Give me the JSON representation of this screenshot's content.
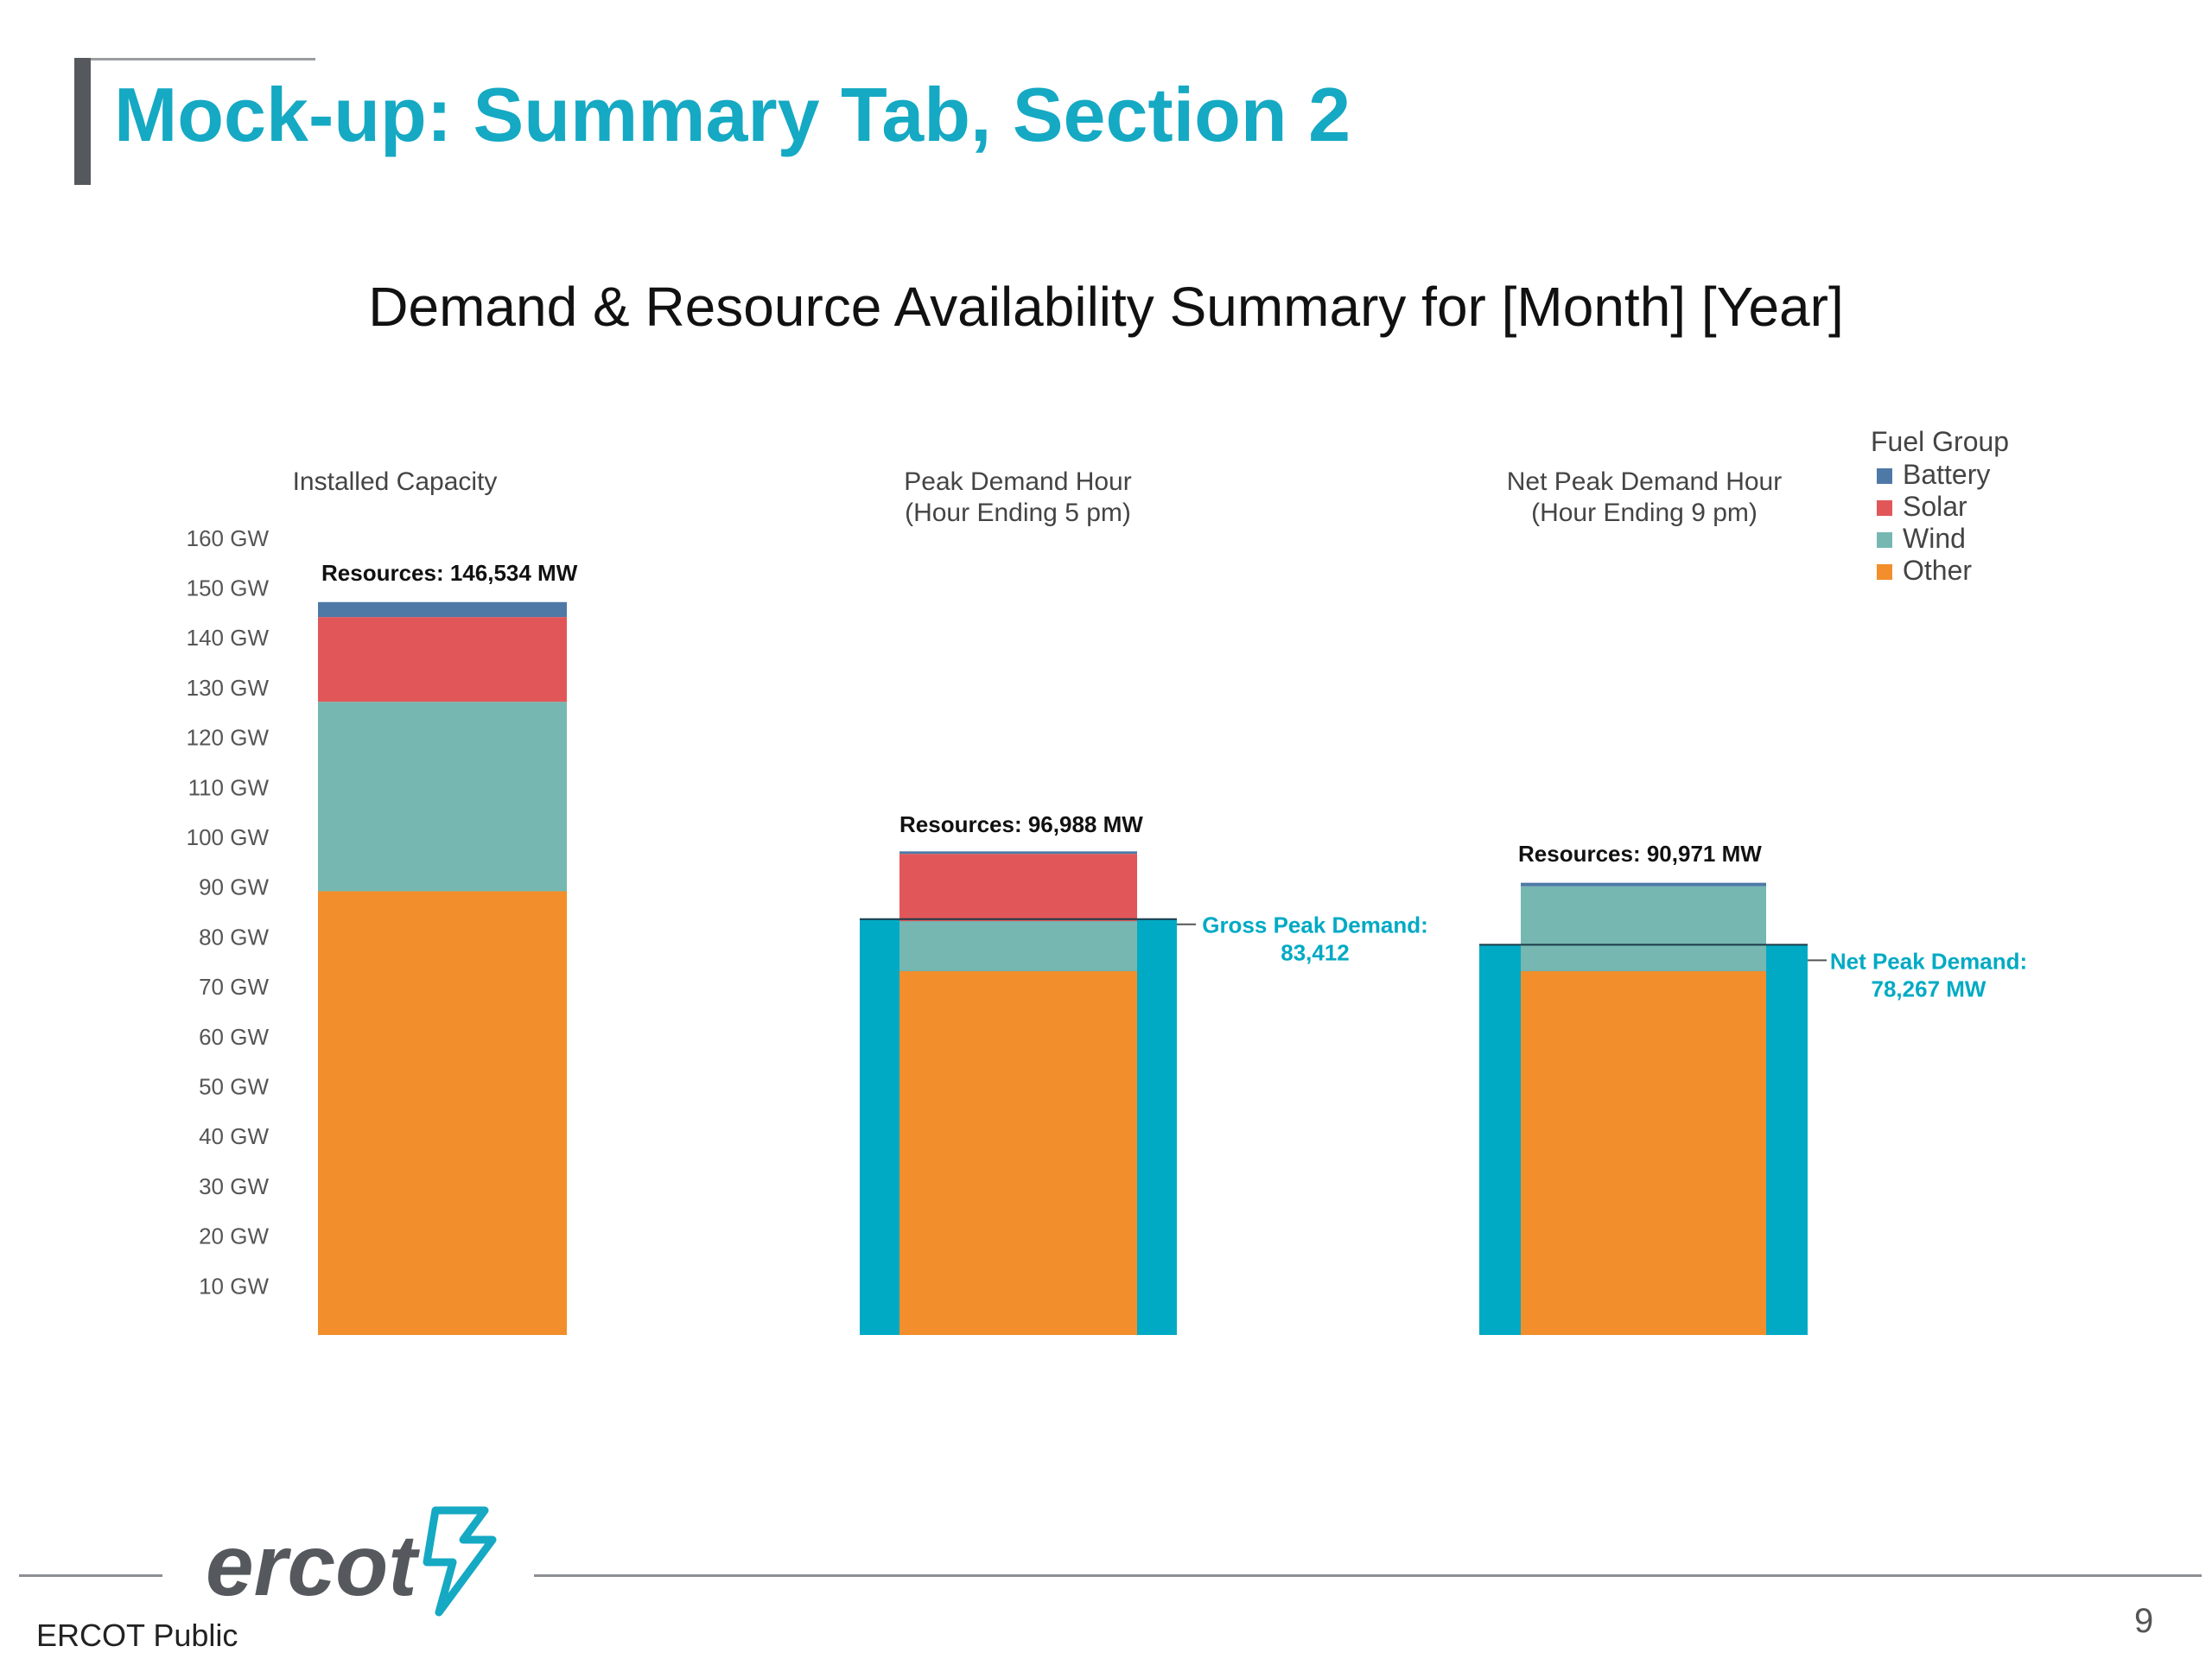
{
  "slide": {
    "title": "Mock-up: Summary Tab, Section 2",
    "footer_text": "ERCOT Public",
    "page_number": "9",
    "logo_text": "ercot",
    "accent_color": "#15a9c3"
  },
  "chart_data": {
    "type": "bar",
    "stacked": true,
    "title": "Demand & Resource Availability Summary for [Month] [Year]",
    "categories": [
      {
        "lines": [
          "Installed Capacity"
        ]
      },
      {
        "lines": [
          "Peak Demand Hour",
          "(Hour Ending 5 pm)"
        ]
      },
      {
        "lines": [
          "Net Peak Demand Hour",
          "(Hour Ending 9 pm)"
        ]
      }
    ],
    "y_ticks": [
      {
        "value": 10,
        "label": "10 GW"
      },
      {
        "value": 20,
        "label": "20 GW"
      },
      {
        "value": 30,
        "label": "30 GW"
      },
      {
        "value": 40,
        "label": "40 GW"
      },
      {
        "value": 50,
        "label": "50 GW"
      },
      {
        "value": 60,
        "label": "60 GW"
      },
      {
        "value": 70,
        "label": "70 GW"
      },
      {
        "value": 80,
        "label": "80 GW"
      },
      {
        "value": 90,
        "label": "90 GW"
      },
      {
        "value": 100,
        "label": "100 GW"
      },
      {
        "value": 110,
        "label": "110 GW"
      },
      {
        "value": 120,
        "label": "120 GW"
      },
      {
        "value": 130,
        "label": "130 GW"
      },
      {
        "value": 140,
        "label": "140 GW"
      },
      {
        "value": 150,
        "label": "150 GW"
      },
      {
        "value": 160,
        "label": "160 GW"
      }
    ],
    "ylim": [
      0,
      160
    ],
    "legend_title": "Fuel Group",
    "legend_position": "top-right",
    "series": [
      {
        "name": "Other",
        "color": "#f28e2b",
        "values": [
          89,
          73,
          73
        ]
      },
      {
        "name": "Wind",
        "color": "#76b7b2",
        "values": [
          38,
          10,
          17
        ]
      },
      {
        "name": "Solar",
        "color": "#e15759",
        "values": [
          17,
          13.5,
          0
        ]
      },
      {
        "name": "Battery",
        "color": "#4e79a7",
        "values": [
          3,
          0.5,
          0.7
        ]
      }
    ],
    "legend_order": [
      "Battery",
      "Solar",
      "Wind",
      "Other"
    ],
    "total_labels": [
      "Resources: 146,534 MW",
      "Resources: 96,988 MW",
      "Resources: 90,971 MW"
    ],
    "demand": [
      null,
      {
        "value": 83.412,
        "color": "#00aac4",
        "label_lines": [
          "Gross Peak Demand:",
          "83,412"
        ]
      },
      {
        "value": 78.267,
        "color": "#00aac4",
        "label_lines": [
          "Net Peak Demand:",
          "78,267 MW"
        ]
      }
    ]
  }
}
